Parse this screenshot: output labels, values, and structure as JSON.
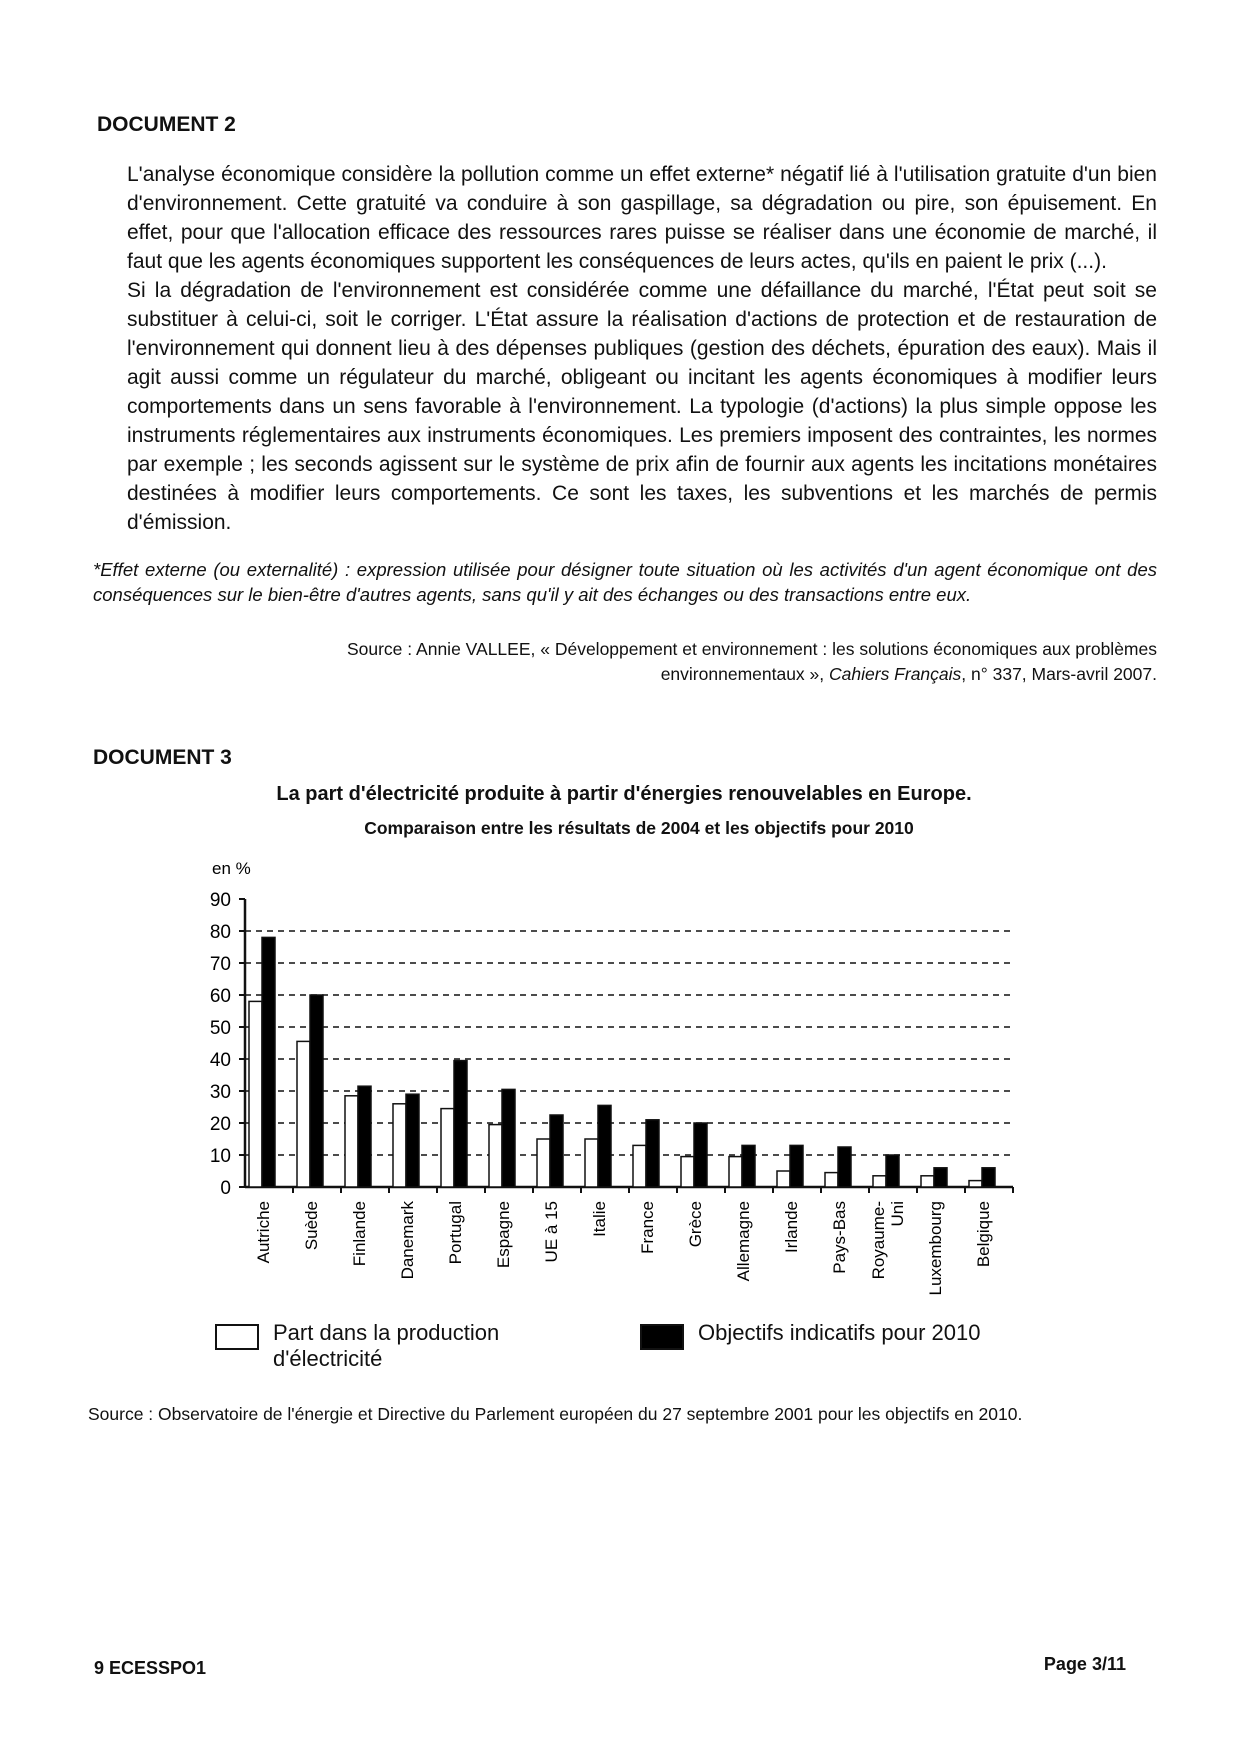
{
  "doc2": {
    "heading": "DOCUMENT 2",
    "paragraphs": [
      "L'analyse économique considère la pollution comme un effet externe* négatif lié à l'utilisation gratuite d'un bien d'environnement. Cette gratuité va conduire à son gaspillage, sa dégradation ou pire, son épuisement. En effet, pour que l'allocation efficace des ressources rares puisse se réaliser dans une économie de marché, il faut que les agents économiques supportent les conséquences de leurs actes, qu'ils en paient le prix (...).",
      "Si la dégradation de l'environnement est considérée comme une défaillance du marché, l'État peut soit se substituer à celui-ci, soit le corriger. L'État assure la réalisation d'actions de protection et de restauration de l'environnement qui donnent lieu à des dépenses publiques (gestion des déchets, épuration des eaux). Mais il agit aussi comme un régulateur du marché, obligeant ou incitant les agents économiques à modifier leurs comportements dans un sens favorable à l'environnement. La typologie (d'actions) la plus simple oppose les instruments réglementaires aux instruments économiques. Les premiers imposent des contraintes, les normes par exemple ; les seconds agissent sur le système de prix afin de fournir aux agents les incitations monétaires destinées à modifier leurs comportements. Ce sont les taxes, les subventions et les marchés de permis d'émission."
    ],
    "footnote": "*Effet externe (ou externalité) : expression utilisée pour désigner toute situation où les activités d'un agent économique ont des conséquences sur le bien-être d'autres agents, sans qu'il y ait des échanges ou des transactions entre eux.",
    "source_line1": "Source : Annie VALLEE, « Développement et environnement : les solutions économiques aux problèmes",
    "source_line2_plain": "environnementaux », ",
    "source_line2_italic": "Cahiers Français",
    "source_line2_end": ", n° 337, Mars-avril 2007."
  },
  "doc3": {
    "heading": "DOCUMENT 3",
    "source": "Source : Observatoire de l'énergie et Directive du Parlement européen du 27 septembre 2001 pour les objectifs en 2010."
  },
  "chart_data": {
    "type": "bar",
    "title": "La part d'électricité produite à partir d'énergies renouvelables en Europe.",
    "subtitle": "Comparaison entre les résultats de 2004 et les objectifs pour 2010",
    "ylabel": "en %",
    "ylim": [
      0,
      90
    ],
    "yticks": [
      "0",
      "10",
      "20",
      "30",
      "40",
      "50",
      "60",
      "70",
      "80",
      "90"
    ],
    "grid": true,
    "legend_position": "bottom",
    "categories": [
      "Autriche",
      "Suède",
      "Finlande",
      "Danemark",
      "Portugal",
      "Espagne",
      "UE à 15",
      "Italie",
      "France",
      "Grèce",
      "Allemagne",
      "Irlande",
      "Pays-Bas",
      "Royaume-Uni",
      "Luxembourg",
      "Belgique"
    ],
    "series": [
      {
        "name": "Part dans la production d'électricité",
        "color": "#ffffff",
        "values": [
          58,
          45.5,
          28.5,
          26,
          24.5,
          19.5,
          15,
          15,
          13,
          9.5,
          9.5,
          5,
          4.5,
          3.5,
          3.5,
          2
        ]
      },
      {
        "name": "Objectifs indicatifs pour 2010",
        "color": "#000000",
        "values": [
          78,
          60,
          31.5,
          29,
          39.5,
          30.5,
          22.5,
          25.5,
          21,
          20,
          13,
          13,
          12.5,
          10,
          6,
          6
        ]
      }
    ]
  },
  "footer": {
    "code": "9 ECESSPO1",
    "page": "Page 3/11"
  }
}
